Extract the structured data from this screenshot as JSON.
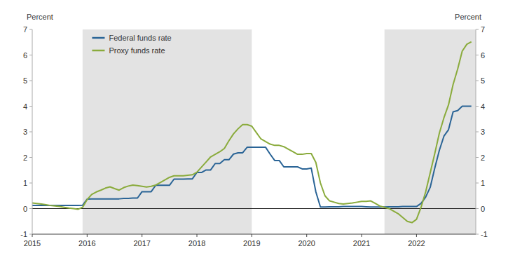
{
  "chart_data": {
    "type": "line",
    "x": [
      2015.0,
      2015.083,
      2015.167,
      2015.25,
      2015.333,
      2015.417,
      2015.5,
      2015.583,
      2015.667,
      2015.75,
      2015.833,
      2015.917,
      2016.0,
      2016.083,
      2016.167,
      2016.25,
      2016.333,
      2016.417,
      2016.5,
      2016.583,
      2016.667,
      2016.75,
      2016.833,
      2016.917,
      2017.0,
      2017.083,
      2017.167,
      2017.25,
      2017.333,
      2017.417,
      2017.5,
      2017.583,
      2017.667,
      2017.75,
      2017.833,
      2017.917,
      2018.0,
      2018.083,
      2018.167,
      2018.25,
      2018.333,
      2018.417,
      2018.5,
      2018.583,
      2018.667,
      2018.75,
      2018.833,
      2018.917,
      2019.0,
      2019.083,
      2019.167,
      2019.25,
      2019.333,
      2019.417,
      2019.5,
      2019.583,
      2019.667,
      2019.75,
      2019.833,
      2019.917,
      2020.0,
      2020.083,
      2020.167,
      2020.25,
      2020.333,
      2020.417,
      2020.5,
      2020.583,
      2020.667,
      2020.75,
      2020.833,
      2020.917,
      2021.0,
      2021.083,
      2021.167,
      2021.25,
      2021.333,
      2021.417,
      2021.5,
      2021.583,
      2021.667,
      2021.75,
      2021.833,
      2021.917,
      2022.0,
      2022.083,
      2022.167,
      2022.25,
      2022.333,
      2022.417,
      2022.5,
      2022.583,
      2022.667,
      2022.75,
      2022.833,
      2022.917,
      2023.0
    ],
    "series": [
      {
        "name": "Federal funds rate",
        "color": "#2a6496",
        "values": [
          0.12,
          0.12,
          0.12,
          0.12,
          0.12,
          0.12,
          0.12,
          0.12,
          0.12,
          0.12,
          0.12,
          0.13,
          0.37,
          0.38,
          0.38,
          0.38,
          0.38,
          0.38,
          0.38,
          0.38,
          0.4,
          0.4,
          0.41,
          0.41,
          0.66,
          0.66,
          0.66,
          0.91,
          0.91,
          0.91,
          0.91,
          1.15,
          1.15,
          1.15,
          1.16,
          1.16,
          1.41,
          1.41,
          1.51,
          1.51,
          1.76,
          1.76,
          1.91,
          1.91,
          2.13,
          2.18,
          2.18,
          2.4,
          2.4,
          2.4,
          2.4,
          2.4,
          2.13,
          1.88,
          1.88,
          1.63,
          1.63,
          1.63,
          1.63,
          1.55,
          1.55,
          1.58,
          0.65,
          0.06,
          0.06,
          0.07,
          0.07,
          0.07,
          0.08,
          0.08,
          0.08,
          0.08,
          0.08,
          0.07,
          0.06,
          0.06,
          0.06,
          0.06,
          0.07,
          0.07,
          0.07,
          0.08,
          0.08,
          0.08,
          0.08,
          0.2,
          0.45,
          0.83,
          1.58,
          2.28,
          2.83,
          3.08,
          3.78,
          3.83,
          4.0,
          4.0,
          4.0
        ]
      },
      {
        "name": "Proxy funds rate",
        "color": "#8aab3c",
        "values": [
          0.22,
          0.2,
          0.18,
          0.15,
          0.12,
          0.1,
          0.08,
          0.05,
          0.02,
          0.0,
          -0.03,
          0.05,
          0.35,
          0.55,
          0.65,
          0.72,
          0.8,
          0.85,
          0.78,
          0.72,
          0.82,
          0.88,
          0.92,
          0.9,
          0.87,
          0.84,
          0.87,
          0.92,
          1.02,
          1.12,
          1.22,
          1.28,
          1.28,
          1.28,
          1.3,
          1.32,
          1.42,
          1.62,
          1.82,
          2.02,
          2.12,
          2.22,
          2.35,
          2.65,
          2.92,
          3.12,
          3.28,
          3.28,
          3.22,
          2.97,
          2.72,
          2.62,
          2.52,
          2.47,
          2.47,
          2.42,
          2.32,
          2.22,
          2.12,
          2.12,
          2.15,
          2.15,
          1.8,
          1.0,
          0.5,
          0.3,
          0.25,
          0.2,
          0.18,
          0.2,
          0.22,
          0.25,
          0.28,
          0.28,
          0.3,
          0.2,
          0.1,
          0.05,
          0.0,
          -0.1,
          -0.2,
          -0.35,
          -0.5,
          -0.55,
          -0.42,
          0.05,
          0.65,
          1.4,
          2.15,
          2.95,
          3.55,
          4.05,
          4.85,
          5.45,
          6.15,
          6.42,
          6.52
        ]
      }
    ],
    "shaded_regions": [
      [
        2015.917,
        2019.0
      ],
      [
        2021.417,
        2023.08
      ]
    ],
    "ylabel": "Percent",
    "y2label": "Percent",
    "xlim": [
      2015.0,
      2023.08
    ],
    "xticks": [
      2015,
      2016,
      2017,
      2018,
      2019,
      2020,
      2021,
      2022
    ],
    "ylim": [
      -1,
      7
    ],
    "yticks": [
      -1,
      0,
      1,
      2,
      3,
      4,
      5,
      6,
      7
    ],
    "y2lim": [
      -1,
      7
    ],
    "y2ticks": [
      -1,
      0,
      1,
      2,
      3,
      4,
      5,
      6,
      7
    ],
    "grid": false,
    "legend": "upper left"
  }
}
